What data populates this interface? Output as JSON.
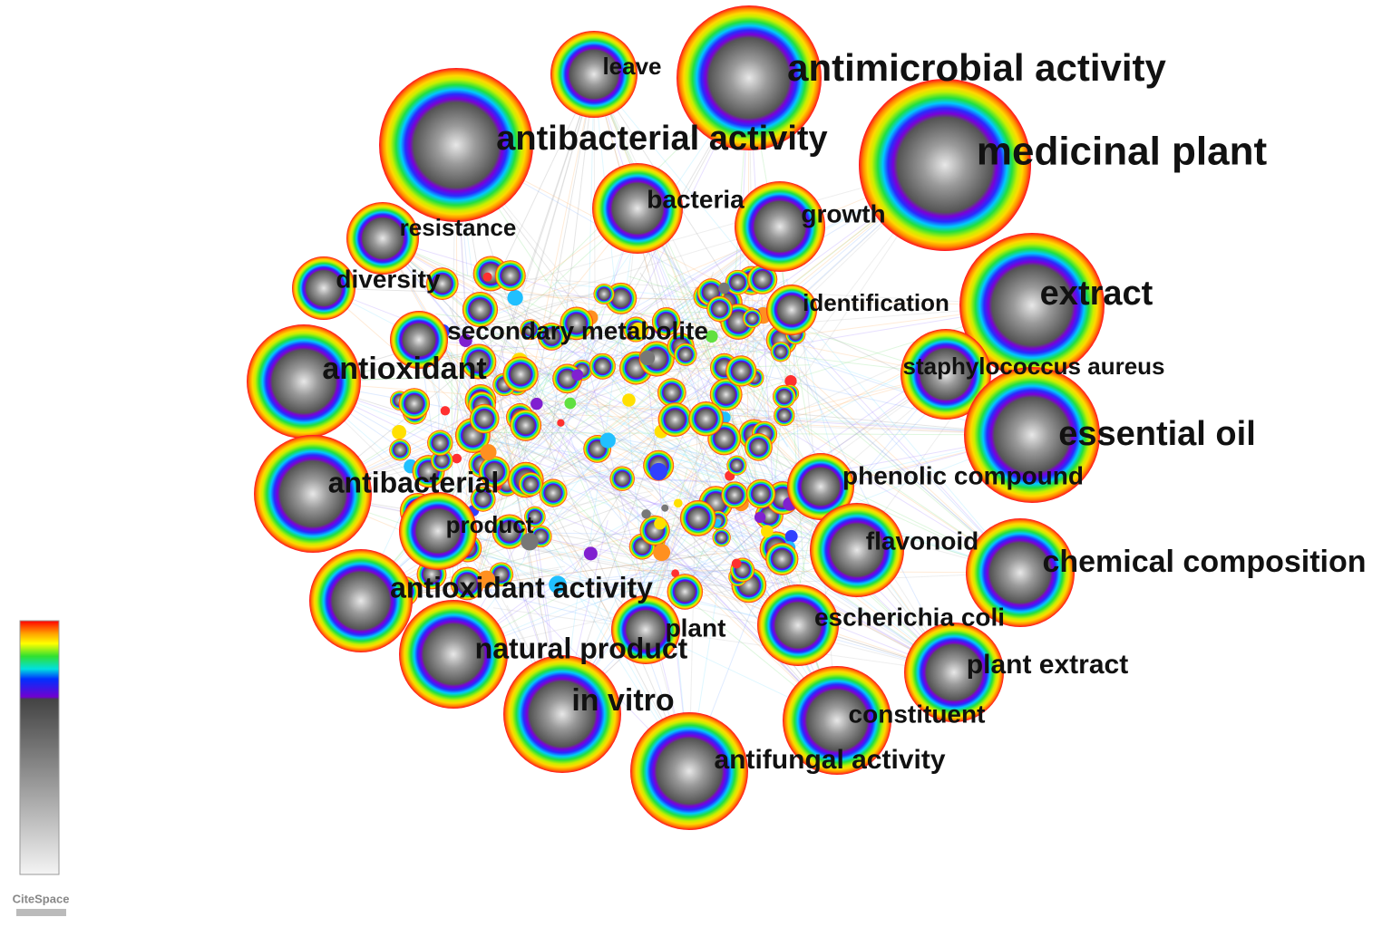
{
  "nodes": [
    {
      "label": "leave"
    },
    {
      "label": "antimicrobial activity"
    },
    {
      "label": "antibacterial activity"
    },
    {
      "label": "medicinal plant"
    },
    {
      "label": "bacteria"
    },
    {
      "label": "growth"
    },
    {
      "label": "resistance"
    },
    {
      "label": "diversity"
    },
    {
      "label": "extract"
    },
    {
      "label": "identification"
    },
    {
      "label": "secondary metabolite"
    },
    {
      "label": "antioxidant"
    },
    {
      "label": "staphylococcus aureus"
    },
    {
      "label": "essential oil"
    },
    {
      "label": "phenolic compound"
    },
    {
      "label": "antibacterial"
    },
    {
      "label": "product"
    },
    {
      "label": "flavonoid"
    },
    {
      "label": "chemical composition"
    },
    {
      "label": "antioxidant activity"
    },
    {
      "label": "escherichia coli"
    },
    {
      "label": "plant"
    },
    {
      "label": "natural product"
    },
    {
      "label": "plant extract"
    },
    {
      "label": "in vitro"
    },
    {
      "label": "constituent"
    },
    {
      "label": "antifungal activity"
    }
  ],
  "logo": "CiteSpace"
}
